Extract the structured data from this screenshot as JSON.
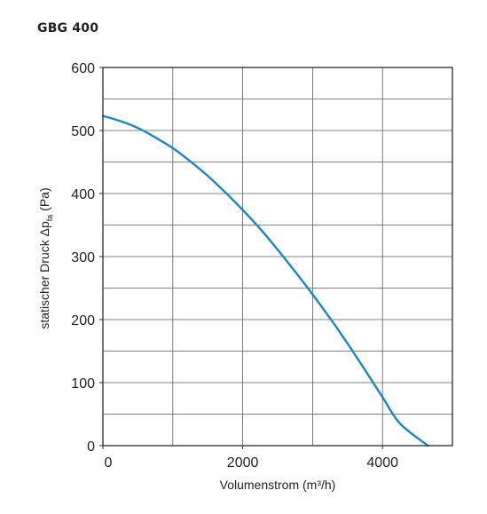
{
  "chart_data": {
    "type": "line",
    "title": "GBG 400",
    "xlabel": "Volumenstrom (m³/h)",
    "ylabel": {
      "prefix": "statischer Druck Δp",
      "subscript": "fa",
      "suffix": " (Pa)"
    },
    "xlim": [
      0,
      5000
    ],
    "ylim": [
      0,
      600
    ],
    "x_ticks": [
      0,
      2000,
      4000
    ],
    "x_tick_labels": [
      "0",
      "2000",
      "4000"
    ],
    "x_gridlines": [
      0,
      1000,
      2000,
      3000,
      4000,
      5000
    ],
    "y_ticks": [
      0,
      100,
      200,
      300,
      400,
      500,
      600
    ],
    "y_tick_labels": [
      "0",
      "100",
      "200",
      "300",
      "400",
      "500",
      "600"
    ],
    "y_gridlines": [
      0,
      50,
      100,
      150,
      200,
      250,
      300,
      350,
      400,
      450,
      500,
      550,
      600
    ],
    "grid": true,
    "series": [
      {
        "color": "#1e86c0",
        "x": [
          0,
          250,
          500,
          750,
          1000,
          1250,
          1500,
          1750,
          2000,
          2250,
          2500,
          2750,
          3000,
          3250,
          3500,
          3750,
          4000,
          4250,
          4500,
          4650
        ],
        "y": [
          523,
          515,
          504,
          489,
          472,
          451,
          428,
          402,
          374,
          344,
          311,
          276,
          240,
          202,
          162,
          120,
          77,
          35,
          0,
          0
        ]
      }
    ]
  }
}
